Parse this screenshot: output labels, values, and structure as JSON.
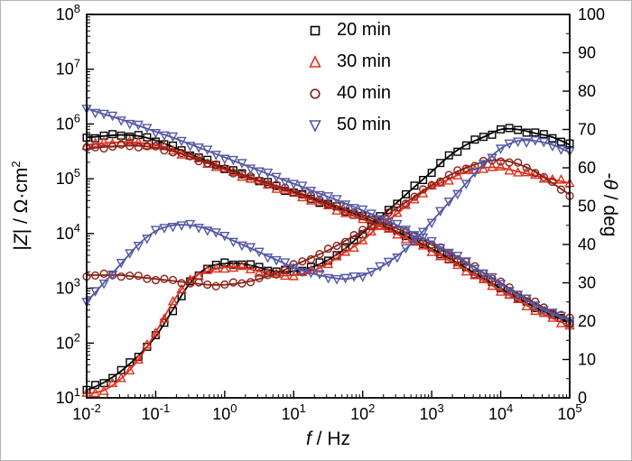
{
  "labels": {
    "x": {
      "it": "f",
      "post": " / Hz"
    },
    "left": {
      "pre": "|",
      "it": "Z",
      "post": "| / Ω·cm",
      "sup": "2"
    },
    "right": {
      "pre": "-",
      "it": "θ",
      "post": " / deg"
    }
  },
  "chart_data": {
    "type": "line",
    "title": "",
    "xlabel": "f / Hz",
    "ylabel_left": "|Z| / Ω·cm2",
    "ylabel_right": "-θ / deg",
    "x_scale": "log",
    "x_range_log10": [
      -2,
      5
    ],
    "x_ticks_log10": [
      -2,
      -1,
      0,
      1,
      2,
      3,
      4,
      5
    ],
    "y_left_scale": "log",
    "y_left_range_log10": [
      1,
      8
    ],
    "y_left_ticks_log10": [
      1,
      2,
      3,
      4,
      5,
      6,
      7,
      8
    ],
    "y_right_scale": "linear",
    "y_right_range": [
      0,
      100
    ],
    "y_right_ticks": [
      0,
      10,
      20,
      30,
      40,
      50,
      60,
      70,
      80,
      90,
      100
    ],
    "legend_position": "top-center-inside",
    "grid": false,
    "log10_f": [
      -2,
      -1.75,
      -1.5,
      -1.25,
      -1,
      -0.75,
      -0.5,
      -0.25,
      0,
      0.25,
      0.5,
      0.75,
      1,
      1.25,
      1.5,
      1.75,
      2,
      2.25,
      2.5,
      2.75,
      3,
      3.25,
      3.5,
      3.75,
      4,
      4.25,
      4.5,
      4.75,
      5
    ],
    "series": [
      {
        "name": "20 min",
        "color": "#000000",
        "marker": "square",
        "log10_Z": [
          5.75,
          5.78,
          5.8,
          5.78,
          5.7,
          5.58,
          5.45,
          5.32,
          5.2,
          5.08,
          4.97,
          4.86,
          4.75,
          4.64,
          4.53,
          4.42,
          4.3,
          4.17,
          4.03,
          3.88,
          3.72,
          3.55,
          3.37,
          3.18,
          3.0,
          2.82,
          2.65,
          2.5,
          2.38
        ],
        "phase_deg": [
          2,
          4,
          7,
          11,
          16,
          23,
          30,
          34,
          35,
          35,
          34,
          33,
          33,
          34,
          36,
          39,
          43,
          47,
          51,
          55,
          59,
          63,
          66,
          68,
          70,
          70,
          69,
          68,
          66
        ]
      },
      {
        "name": "30 min",
        "color": "#e0301e",
        "marker": "triangle-up",
        "log10_Z": [
          5.62,
          5.65,
          5.67,
          5.66,
          5.61,
          5.52,
          5.41,
          5.29,
          5.17,
          5.06,
          4.95,
          4.84,
          4.73,
          4.62,
          4.5,
          4.38,
          4.26,
          4.13,
          3.99,
          3.84,
          3.68,
          3.51,
          3.33,
          3.14,
          2.96,
          2.78,
          2.6,
          2.45,
          2.32
        ],
        "phase_deg": [
          1,
          2,
          5,
          10,
          17,
          25,
          31,
          33,
          34,
          34,
          33,
          32,
          32,
          33,
          35,
          38,
          41,
          45,
          48,
          52,
          55,
          57,
          59,
          60,
          60,
          59,
          58,
          57,
          56
        ]
      },
      {
        "name": "40 min",
        "color": "#8b2015",
        "marker": "circle",
        "log10_Z": [
          5.55,
          5.58,
          5.6,
          5.6,
          5.57,
          5.5,
          5.4,
          5.29,
          5.18,
          5.07,
          4.97,
          4.87,
          4.77,
          4.67,
          4.56,
          4.45,
          4.34,
          4.22,
          4.09,
          3.95,
          3.8,
          3.64,
          3.47,
          3.29,
          3.1,
          2.91,
          2.73,
          2.57,
          2.44
        ],
        "phase_deg": [
          32,
          32,
          32,
          31.5,
          31,
          30.5,
          30,
          29.5,
          29.5,
          30,
          31,
          32.5,
          34.5,
          36.5,
          38.5,
          41,
          43.5,
          46.5,
          49.5,
          52.5,
          55.5,
          58,
          60,
          61.5,
          62,
          61,
          59,
          56,
          53
        ]
      },
      {
        "name": "50 min",
        "color": "#5358a6",
        "marker": "triangle-down",
        "log10_Z": [
          6.28,
          6.18,
          6.08,
          5.97,
          5.86,
          5.75,
          5.63,
          5.51,
          5.39,
          5.27,
          5.15,
          5.03,
          4.91,
          4.79,
          4.67,
          4.55,
          4.42,
          4.29,
          4.15,
          4.0,
          3.84,
          3.67,
          3.48,
          3.28,
          3.08,
          2.88,
          2.7,
          2.54,
          2.42
        ],
        "phase_deg": [
          25,
          30,
          35,
          40,
          43.5,
          45,
          45,
          44,
          42,
          40,
          38,
          36,
          34,
          32.5,
          31.5,
          31,
          32,
          34,
          37,
          41,
          46,
          51,
          56,
          61,
          65,
          67,
          67,
          66,
          64
        ]
      }
    ]
  }
}
